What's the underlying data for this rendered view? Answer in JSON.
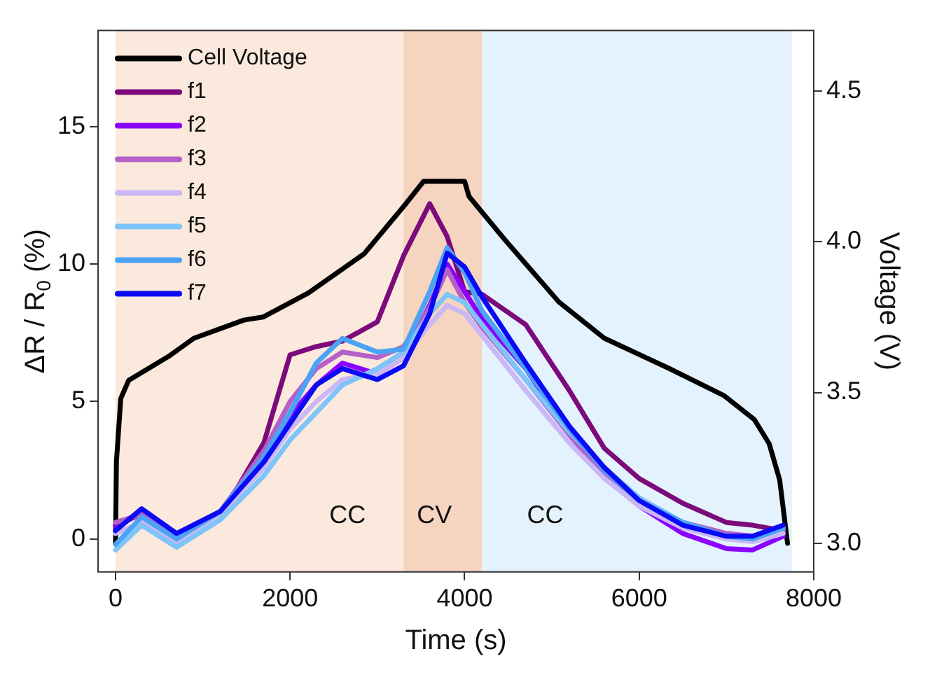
{
  "chart_data": {
    "type": "line",
    "xlabel": "Time (s)",
    "ylabel": "ΔR / R$_{0}$ (%)",
    "y2label": "Voltage (V)",
    "x": [
      0,
      300,
      700,
      1200,
      1700,
      2000,
      2300,
      2600,
      3000,
      3300,
      3600,
      3800,
      4000,
      4200,
      4700,
      5200,
      5600,
      6000,
      6500,
      7000,
      7300,
      7650
    ],
    "series": [
      {
        "name": "Cell Voltage",
        "color": "#000000",
        "axis": "y2",
        "x": [
          0,
          10,
          60,
          150,
          610,
          900,
          1470,
          1690,
          2210,
          2850,
          3310,
          3530,
          4000,
          4050,
          4450,
          5080,
          5600,
          6340,
          6970,
          7320,
          7490,
          7610,
          7700
        ],
        "values": [
          3.0,
          3.27,
          3.48,
          3.54,
          3.62,
          3.68,
          3.74,
          3.75,
          3.83,
          3.96,
          4.12,
          4.2,
          4.2,
          4.15,
          4.01,
          3.8,
          3.68,
          3.58,
          3.49,
          3.41,
          3.33,
          3.21,
          3.0
        ]
      },
      {
        "name": "f1",
        "color": "#7b0a7b",
        "values": [
          0.5,
          0.9,
          0.1,
          0.8,
          3.5,
          6.7,
          7.0,
          7.2,
          7.9,
          10.3,
          12.2,
          11.0,
          9.0,
          8.9,
          7.8,
          5.4,
          3.3,
          2.2,
          1.3,
          0.6,
          0.5,
          0.3
        ]
      },
      {
        "name": "f2",
        "color": "#8a00ff",
        "values": [
          0.4,
          1.0,
          0.1,
          0.9,
          2.9,
          4.5,
          5.6,
          6.4,
          6.0,
          6.6,
          8.5,
          10.0,
          9.0,
          8.0,
          6.2,
          3.8,
          2.3,
          1.2,
          0.2,
          -0.35,
          -0.4,
          0.1
        ]
      },
      {
        "name": "f3",
        "color": "#b55fc8",
        "values": [
          0.6,
          0.9,
          0.0,
          1.0,
          3.2,
          5.0,
          6.2,
          6.8,
          6.6,
          7.0,
          8.4,
          9.8,
          8.6,
          7.7,
          5.8,
          3.8,
          2.4,
          1.4,
          0.6,
          0.2,
          0.1,
          0.3
        ]
      },
      {
        "name": "f4",
        "color": "#c9b8f5",
        "values": [
          0.2,
          0.6,
          -0.2,
          0.9,
          2.6,
          4.0,
          5.0,
          5.8,
          6.0,
          6.6,
          7.8,
          8.5,
          8.2,
          7.4,
          5.4,
          3.5,
          2.2,
          1.2,
          0.4,
          0.0,
          -0.1,
          0.2
        ]
      },
      {
        "name": "f5",
        "color": "#7fc4f8",
        "values": [
          -0.4,
          0.5,
          -0.3,
          0.7,
          2.3,
          3.6,
          4.6,
          5.6,
          6.2,
          6.8,
          8.2,
          8.9,
          8.6,
          7.8,
          5.8,
          3.9,
          2.6,
          1.5,
          0.6,
          0.1,
          0.0,
          0.4
        ]
      },
      {
        "name": "f6",
        "color": "#4aa3f5",
        "values": [
          -0.2,
          0.8,
          0.0,
          1.0,
          3.0,
          4.6,
          6.4,
          7.3,
          6.8,
          6.9,
          9.0,
          10.6,
          9.7,
          8.3,
          6.2,
          4.0,
          2.5,
          1.4,
          0.6,
          0.1,
          0.0,
          0.4
        ]
      },
      {
        "name": "f7",
        "color": "#0a0af5",
        "values": [
          0.3,
          1.1,
          0.2,
          1.0,
          2.8,
          4.2,
          5.6,
          6.2,
          5.8,
          6.3,
          8.2,
          10.4,
          9.9,
          8.8,
          6.4,
          4.1,
          2.6,
          1.4,
          0.5,
          0.1,
          0.1,
          0.5
        ]
      }
    ],
    "bands": [
      {
        "axis": "x",
        "from": 0,
        "to": 3300,
        "label": "CC",
        "color": "#fbe9dd"
      },
      {
        "axis": "x",
        "from": 3300,
        "to": 4200,
        "label": "CV",
        "color": "#f6d5c0"
      },
      {
        "axis": "x",
        "from": 4200,
        "to": 7750,
        "label": "CC",
        "color": "#e4f2fd"
      }
    ],
    "xlim": [
      -200,
      8000
    ],
    "xticks": [
      0,
      2000,
      4000,
      6000,
      8000
    ],
    "ylim": [
      -1.2,
      18.5
    ],
    "yticks": [
      0,
      5,
      10,
      15
    ],
    "y2lim": [
      2.905,
      4.7
    ],
    "y2ticks": [
      {
        "value": 3,
        "label": "3.0"
      },
      3.5,
      {
        "value": 4,
        "label": "4.0"
      },
      4.5
    ],
    "legend": "top left",
    "grid": false,
    "marker": "none",
    "line_style": "solid"
  }
}
